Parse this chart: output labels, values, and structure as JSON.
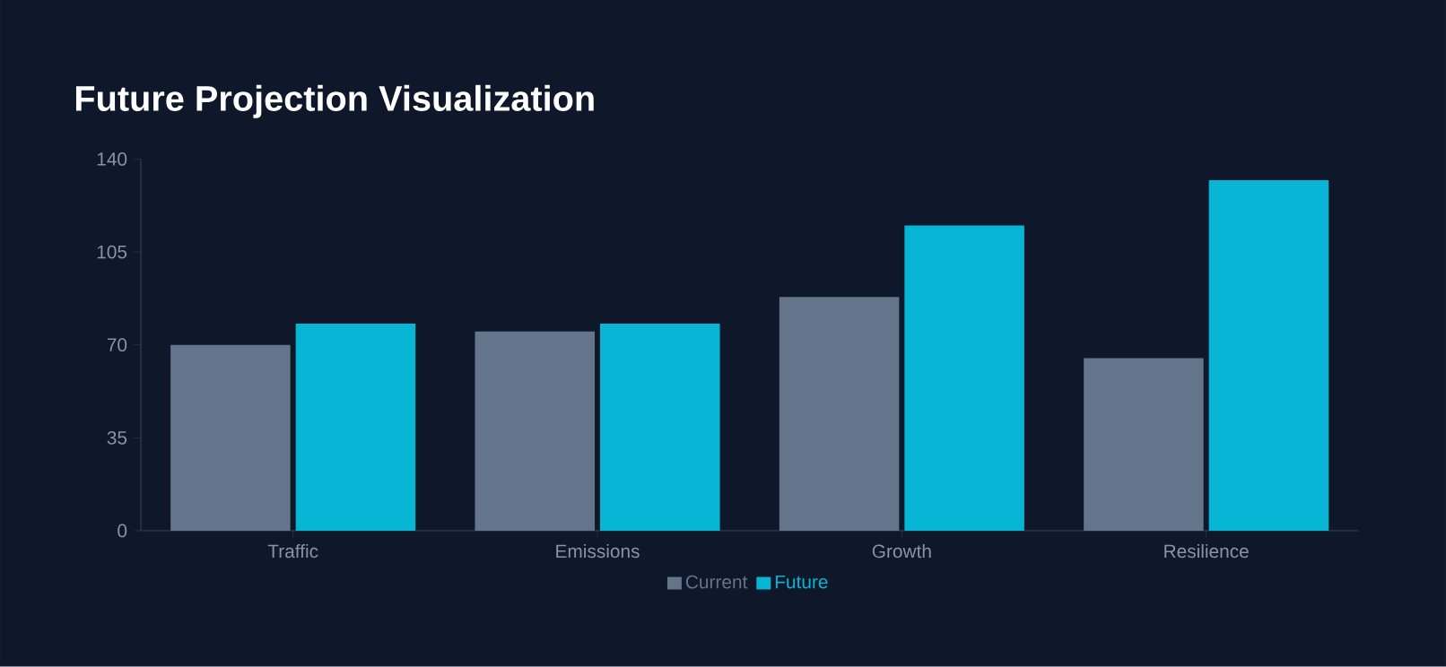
{
  "chart_data": {
    "type": "bar",
    "title": "Future Projection Visualization",
    "categories": [
      "Traffic",
      "Emissions",
      "Growth",
      "Resilience"
    ],
    "series": [
      {
        "name": "Current",
        "color": "#64748b",
        "values": [
          70,
          75,
          88,
          65
        ]
      },
      {
        "name": "Future",
        "color": "#06b6d4",
        "values": [
          78,
          78,
          115,
          132
        ]
      }
    ],
    "ylim": [
      0,
      140
    ],
    "yticks": [
      0,
      35,
      70,
      105,
      140
    ],
    "legend": "bottom"
  }
}
